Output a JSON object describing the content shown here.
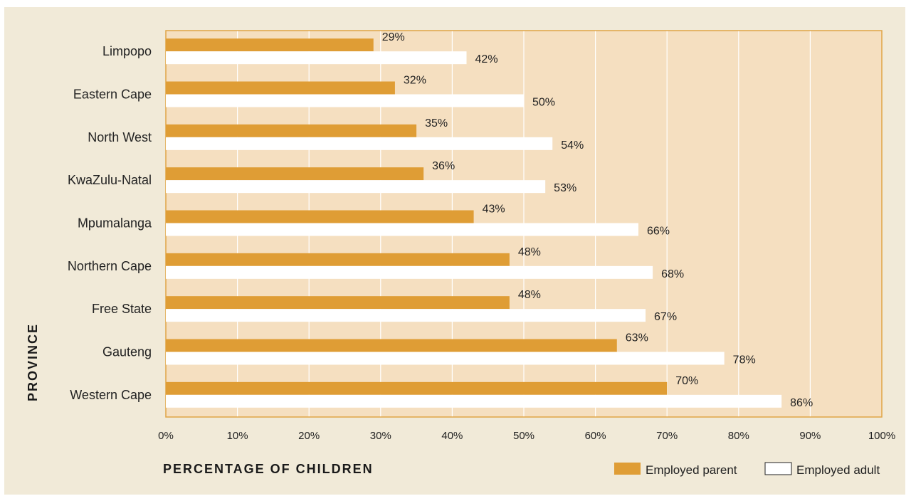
{
  "chart_data": {
    "type": "bar",
    "orientation": "horizontal",
    "categories": [
      "Limpopo",
      "Eastern Cape",
      "North West",
      "KwaZulu-Natal",
      "Mpumalanga",
      "Northern Cape",
      "Free State",
      "Gauteng",
      "Western Cape"
    ],
    "series": [
      {
        "name": "Employed parent",
        "values": [
          29,
          32,
          35,
          36,
          43,
          48,
          48,
          63,
          70
        ],
        "labels": [
          "29%",
          "32%",
          "35%",
          "36%",
          "43%",
          "48%",
          "48%",
          "63%",
          "70%"
        ],
        "color": "#df9d35"
      },
      {
        "name": "Employed adult",
        "values": [
          42,
          50,
          54,
          53,
          66,
          68,
          67,
          78,
          86
        ],
        "labels": [
          "42%",
          "50%",
          "54%",
          "53%",
          "66%",
          "68%",
          "67%",
          "78%",
          "86%"
        ],
        "color": "#ffffff"
      }
    ],
    "xlabel": "PERCENTAGE OF CHILDREN",
    "ylabel": "PROVINCE",
    "xlim": [
      0,
      100
    ],
    "xticks": [
      "0%",
      "10%",
      "20%",
      "30%",
      "40%",
      "50%",
      "60%",
      "70%",
      "80%",
      "90%",
      "100%"
    ],
    "grid": true,
    "legend_position": "bottom-right",
    "plot_background": "#f5dfc0",
    "page_background": "#f1ead8",
    "border_color": "#e0a446"
  }
}
